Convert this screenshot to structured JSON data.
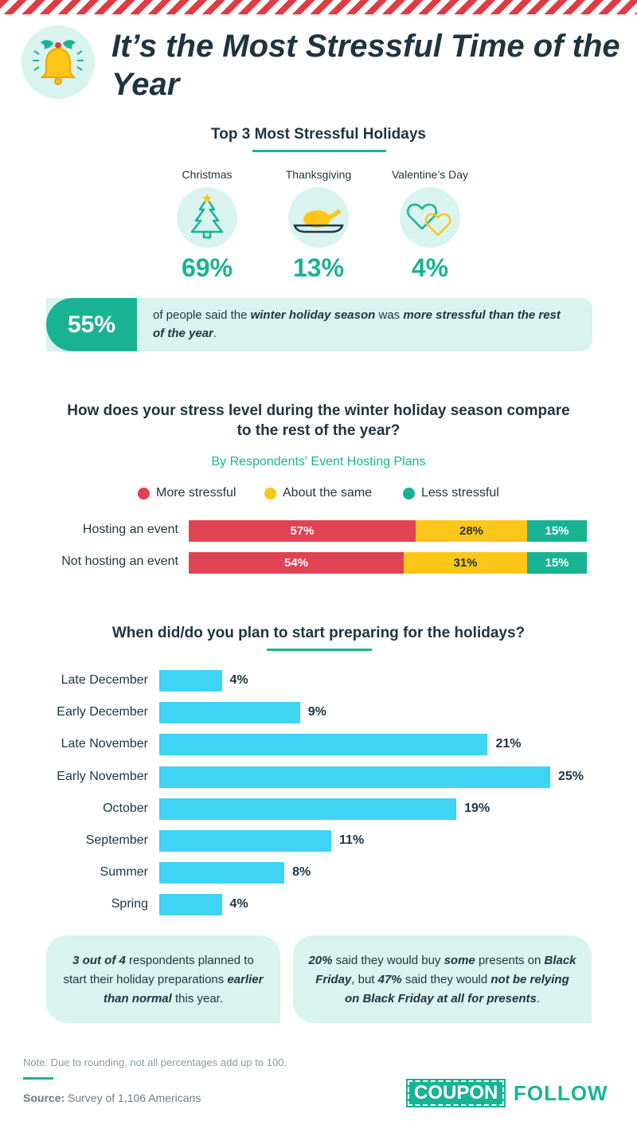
{
  "title": "It’s the Most Stressful Time of the Year",
  "icons": {
    "header": "bell-holly-icon",
    "christmas": "christmas-tree-icon",
    "thanksgiving": "turkey-icon",
    "valentines": "two-hearts-icon"
  },
  "colors": {
    "teal": "#19b394",
    "light_teal": "#d9f3ef",
    "red": "#e04354",
    "yellow": "#ffc61a",
    "cyan": "#3fd3f5",
    "navy": "#1f3440"
  },
  "holidays": {
    "heading": "Top 3 Most Stressful Holidays",
    "items": [
      {
        "label": "Christmas",
        "pct": "69%"
      },
      {
        "label": "Thanksgiving",
        "pct": "13%"
      },
      {
        "label": "Valentine’s Day",
        "pct": "4%"
      }
    ]
  },
  "callout": {
    "pct": "55%",
    "t1": "of people said the ",
    "b1": "winter holiday season",
    "t2": " was ",
    "b2": "more stressful than the rest of the year",
    "t3": "."
  },
  "chart_data": [
    {
      "type": "bar",
      "orientation": "horizontal",
      "stacked": true,
      "title": "How does your stress level during the winter holiday season compare to the rest of the year?",
      "subtitle": "By Respondents' Event Hosting Plans",
      "categories": [
        "Hosting an event",
        "Not hosting an event"
      ],
      "series": [
        {
          "name": "More stressful",
          "values": [
            57,
            54
          ],
          "labels": [
            "57%",
            "54%"
          ]
        },
        {
          "name": "About the same",
          "values": [
            28,
            31
          ],
          "labels": [
            "28%",
            "31%"
          ]
        },
        {
          "name": "Less stressful",
          "values": [
            15,
            15
          ],
          "labels": [
            "15%",
            "15%"
          ]
        }
      ]
    },
    {
      "type": "bar",
      "orientation": "horizontal",
      "title": "When did/do you plan to start preparing for the holidays?",
      "categories": [
        "Late December",
        "Early December",
        "Late November",
        "Early November",
        "October",
        "September",
        "Summer",
        "Spring"
      ],
      "values": [
        4,
        9,
        21,
        25,
        19,
        11,
        8,
        4
      ],
      "labels": [
        "4%",
        "9%",
        "21%",
        "25%",
        "19%",
        "11%",
        "8%",
        "4%"
      ],
      "xlim": [
        0,
        25
      ]
    }
  ],
  "box1": {
    "b1": "3 out of 4",
    "t1": " respondents planned to start their holiday preparations ",
    "b2": "earlier than normal",
    "t2": " this year."
  },
  "box2": {
    "b1": "20%",
    "t1": " said they would buy ",
    "b2": "some",
    "t2": " presents on ",
    "b3": "Black Friday",
    "t3": ", but ",
    "b4": "47%",
    "t4": " said they would ",
    "b5": "not be relying on Black Friday at all for presents",
    "t5": "."
  },
  "footer": {
    "note": "Note: Due to rounding, not all percentages add up to 100.",
    "source_label": "Source:",
    "source_text": " Survey of 1,106 Americans",
    "logo_left": "COUPON",
    "logo_right": "FOLLOW"
  }
}
